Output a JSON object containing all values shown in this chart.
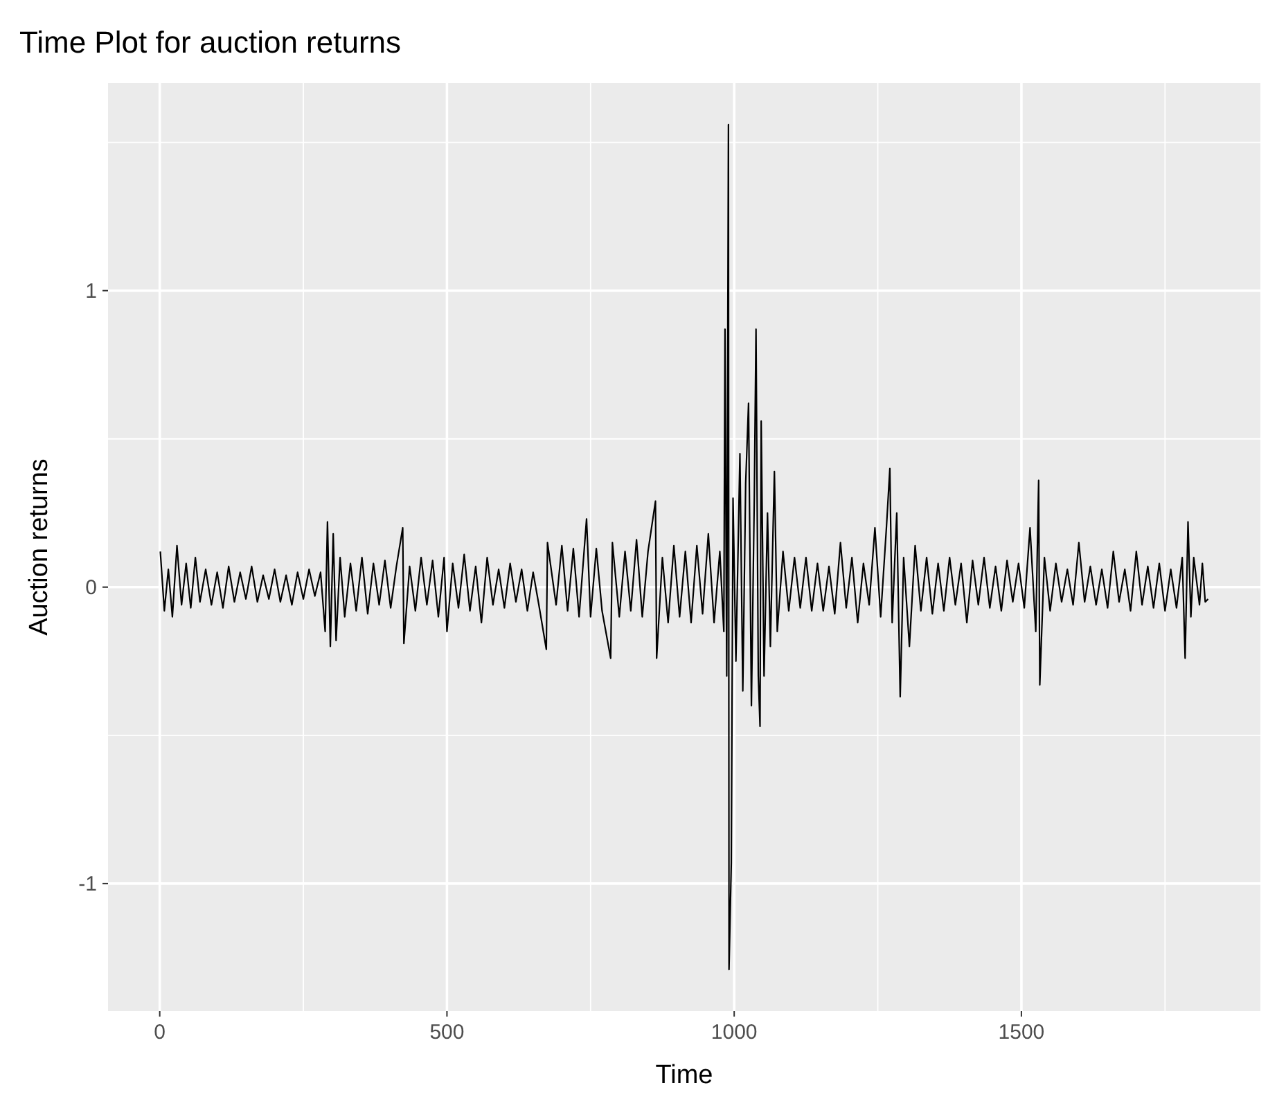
{
  "chart_data": {
    "type": "line",
    "title": "Time Plot for auction returns",
    "xlabel": "Time",
    "ylabel": "Auction returns",
    "grid": true,
    "marker": "none",
    "line_style": "solid",
    "xlim": [
      -90,
      1916
    ],
    "xticks": [
      0,
      {
        "value": 250,
        "label": null
      },
      500,
      {
        "value": 750,
        "label": null
      },
      1000,
      {
        "value": 1250,
        "label": null
      },
      1500,
      {
        "value": 1750,
        "label": null
      }
    ],
    "ylim": [
      -1.43,
      1.7
    ],
    "yticks": [
      {
        "value": -0.5,
        "label": null
      },
      -1,
      0,
      1,
      {
        "value": 0.5,
        "label": null
      },
      {
        "value": 1.5,
        "label": null
      }
    ],
    "x": [
      1,
      8,
      15,
      22,
      30,
      38,
      46,
      54,
      62,
      70,
      80,
      90,
      100,
      110,
      120,
      130,
      140,
      150,
      160,
      170,
      180,
      190,
      200,
      210,
      220,
      230,
      240,
      250,
      260,
      270,
      280,
      288,
      292,
      297,
      302,
      307,
      314,
      322,
      332,
      342,
      352,
      362,
      372,
      382,
      392,
      402,
      412,
      423,
      425,
      435,
      445,
      455,
      465,
      475,
      485,
      495,
      500,
      510,
      520,
      530,
      540,
      550,
      560,
      570,
      580,
      590,
      600,
      610,
      620,
      630,
      640,
      650,
      660,
      673,
      675,
      690,
      700,
      710,
      720,
      730,
      743,
      750,
      760,
      770,
      785,
      788,
      800,
      810,
      820,
      830,
      840,
      850,
      863,
      865,
      875,
      885,
      895,
      905,
      915,
      925,
      935,
      945,
      955,
      965,
      975,
      982,
      984,
      987,
      990,
      991,
      995,
      998,
      1003,
      1010,
      1015,
      1020,
      1025,
      1030,
      1035,
      1038,
      1042,
      1045,
      1047,
      1052,
      1058,
      1063,
      1070,
      1075,
      1085,
      1095,
      1105,
      1115,
      1125,
      1135,
      1145,
      1155,
      1165,
      1175,
      1185,
      1195,
      1205,
      1215,
      1225,
      1235,
      1245,
      1255,
      1265,
      1271,
      1275,
      1283,
      1289,
      1295,
      1305,
      1315,
      1325,
      1335,
      1345,
      1355,
      1365,
      1375,
      1385,
      1395,
      1405,
      1415,
      1425,
      1435,
      1445,
      1455,
      1465,
      1475,
      1485,
      1495,
      1505,
      1515,
      1525,
      1530,
      1532,
      1540,
      1550,
      1560,
      1570,
      1580,
      1590,
      1600,
      1610,
      1620,
      1630,
      1640,
      1650,
      1660,
      1670,
      1680,
      1690,
      1700,
      1710,
      1720,
      1730,
      1740,
      1750,
      1760,
      1770,
      1780,
      1785,
      1790,
      1795,
      1800,
      1810,
      1815,
      1820,
      1825
    ],
    "series": [
      {
        "color": "#000000",
        "values": [
          0.12,
          -0.08,
          0.06,
          -0.1,
          0.14,
          -0.06,
          0.08,
          -0.07,
          0.1,
          -0.05,
          0.06,
          -0.06,
          0.05,
          -0.07,
          0.07,
          -0.05,
          0.05,
          -0.04,
          0.07,
          -0.05,
          0.04,
          -0.04,
          0.06,
          -0.05,
          0.04,
          -0.06,
          0.05,
          -0.04,
          0.06,
          -0.03,
          0.05,
          -0.15,
          0.22,
          -0.2,
          0.18,
          -0.18,
          0.1,
          -0.1,
          0.08,
          -0.08,
          0.1,
          -0.09,
          0.08,
          -0.06,
          0.09,
          -0.07,
          0.07,
          0.2,
          -0.19,
          0.07,
          -0.08,
          0.1,
          -0.06,
          0.09,
          -0.1,
          0.1,
          -0.15,
          0.08,
          -0.07,
          0.11,
          -0.08,
          0.07,
          -0.12,
          0.1,
          -0.06,
          0.06,
          -0.07,
          0.08,
          -0.05,
          0.06,
          -0.08,
          0.05,
          -0.06,
          -0.21,
          0.15,
          -0.06,
          0.14,
          -0.08,
          0.13,
          -0.1,
          0.23,
          -0.1,
          0.13,
          -0.08,
          -0.24,
          0.15,
          -0.1,
          0.12,
          -0.08,
          0.16,
          -0.1,
          0.12,
          0.29,
          -0.24,
          0.1,
          -0.12,
          0.14,
          -0.1,
          0.12,
          -0.12,
          0.14,
          -0.09,
          0.18,
          -0.12,
          0.12,
          -0.15,
          0.87,
          -0.3,
          1.56,
          -1.29,
          -0.93,
          0.3,
          -0.25,
          0.45,
          -0.35,
          0.35,
          0.62,
          -0.4,
          0.3,
          0.87,
          -0.3,
          -0.47,
          0.56,
          -0.3,
          0.25,
          -0.2,
          0.39,
          -0.15,
          0.12,
          -0.08,
          0.1,
          -0.07,
          0.1,
          -0.08,
          0.08,
          -0.08,
          0.07,
          -0.09,
          0.15,
          -0.07,
          0.1,
          -0.12,
          0.08,
          -0.06,
          0.2,
          -0.1,
          0.2,
          0.4,
          -0.12,
          0.25,
          -0.37,
          0.1,
          -0.2,
          0.14,
          -0.08,
          0.1,
          -0.09,
          0.08,
          -0.08,
          0.1,
          -0.06,
          0.08,
          -0.12,
          0.09,
          -0.06,
          0.1,
          -0.07,
          0.07,
          -0.08,
          0.09,
          -0.05,
          0.08,
          -0.07,
          0.2,
          -0.15,
          0.36,
          -0.33,
          0.1,
          -0.08,
          0.08,
          -0.05,
          0.06,
          -0.06,
          0.15,
          -0.05,
          0.07,
          -0.06,
          0.06,
          -0.07,
          0.12,
          -0.05,
          0.06,
          -0.08,
          0.12,
          -0.06,
          0.07,
          -0.07,
          0.08,
          -0.08,
          0.06,
          -0.07,
          0.1,
          -0.24,
          0.22,
          -0.1,
          0.1,
          -0.06,
          0.08,
          -0.05,
          -0.04
        ]
      }
    ]
  }
}
